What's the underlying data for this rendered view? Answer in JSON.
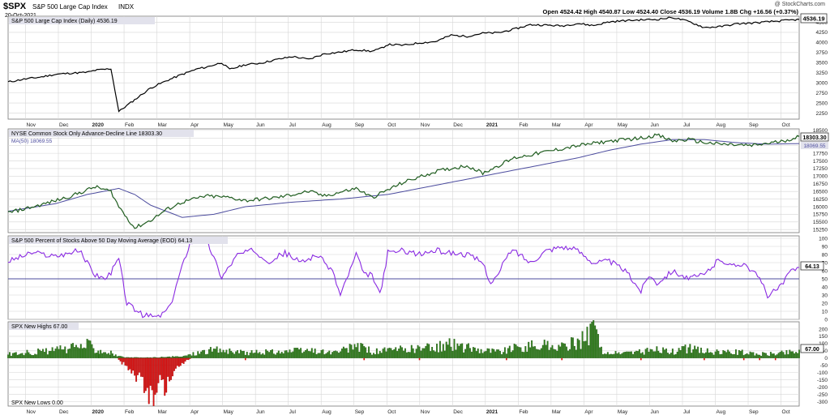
{
  "header": {
    "symbol": "$SPX",
    "name": "S&P 500 Large Cap Index",
    "exchange": "INDX",
    "date": "20-Oct-2021",
    "ohlc": "Open 4524.42  High 4540.87  Low 4524.40  Close 4536.19  Volume 1.8B  Chg +16.56 (+0.37%)",
    "watermark": "@ StockCharts.com"
  },
  "colors": {
    "price": "#000000",
    "ad_line": "#1e5c1e",
    "ma": "#4c4c9e",
    "pct": "#8a2be2",
    "highs": "#2e7d1a",
    "lows": "#dd1111",
    "grid": "#d6d6d6",
    "label_box": "#e2e2ec"
  },
  "chart_data": [
    {
      "type": "line",
      "title": "S&P 500 Large Cap Index (Daily) 4536.19",
      "last_value": "4536.19",
      "ylim": [
        2100,
        4650
      ],
      "yticks": [
        "4500",
        "4250",
        "4000",
        "3750",
        "3500",
        "3250",
        "3000",
        "2750",
        "2500",
        "2250"
      ],
      "anchors_x": [
        0,
        2,
        4,
        6,
        8,
        10,
        11,
        13,
        14,
        16,
        18,
        20,
        22,
        24,
        25,
        27,
        28,
        30,
        32,
        34,
        36,
        38,
        40,
        42,
        44,
        46,
        47,
        48,
        50,
        52,
        54,
        56,
        58,
        60,
        62,
        64,
        66,
        68,
        70,
        72,
        74,
        76,
        78,
        80,
        82,
        84,
        86,
        88,
        90,
        92,
        94,
        96,
        98,
        100
      ],
      "anchors_y": [
        3020,
        3090,
        3140,
        3210,
        3240,
        3260,
        3310,
        3350,
        2290,
        2580,
        2870,
        3050,
        3210,
        3350,
        3385,
        3500,
        3330,
        3450,
        3490,
        3580,
        3650,
        3580,
        3720,
        3760,
        3820,
        3780,
        3840,
        3950,
        3930,
        3990,
        4020,
        4180,
        4150,
        4230,
        4240,
        4330,
        4440,
        4430,
        4410,
        4470,
        4420,
        4510,
        4540,
        4560,
        4570,
        4620,
        4520,
        4370,
        4390,
        4460,
        4480,
        4510,
        4540,
        4570
      ]
    },
    {
      "type": "line",
      "title": "NYSE Common Stock Only Advance-Decline Line 18303.30",
      "ma_title": "MA(50) 18069.55",
      "last_value": "18303.30",
      "ma_last_value": "18069.55",
      "ylim": [
        15150,
        18550
      ],
      "yticks": [
        "18500",
        "18250",
        "18000",
        "17750",
        "17500",
        "17250",
        "17000",
        "16750",
        "16500",
        "16250",
        "16000",
        "15750",
        "15500",
        "15250"
      ],
      "ad_x": [
        0,
        4,
        8,
        11,
        13,
        14,
        16,
        18,
        20,
        22,
        25,
        28,
        30,
        34,
        38,
        40,
        44,
        46,
        50,
        54,
        58,
        60,
        64,
        68,
        72,
        76,
        80,
        82,
        84,
        86,
        88,
        90,
        94,
        98,
        100
      ],
      "ad_y": [
        15800,
        16050,
        16350,
        16650,
        16500,
        16000,
        15300,
        15550,
        15900,
        16150,
        16350,
        16300,
        16200,
        16300,
        16500,
        16350,
        16600,
        16300,
        16800,
        17150,
        17350,
        17100,
        17600,
        17800,
        18000,
        18150,
        18250,
        18350,
        18150,
        18200,
        18100,
        18050,
        18000,
        18150,
        18303
      ],
      "ma_x": [
        0,
        6,
        10,
        14,
        16,
        18,
        22,
        26,
        30,
        36,
        42,
        48,
        54,
        60,
        66,
        72,
        76,
        80,
        84,
        88,
        92,
        96,
        100
      ],
      "ma_y": [
        15850,
        16100,
        16400,
        16600,
        16400,
        16050,
        15650,
        15750,
        16000,
        16150,
        16250,
        16400,
        16700,
        17000,
        17300,
        17600,
        17850,
        18050,
        18200,
        18200,
        18100,
        18050,
        18069
      ]
    },
    {
      "type": "line",
      "title": "S&P 500 Percent of Stocks Above 50 Day Moving Average (EOD) 64.13",
      "last_value": "64.13",
      "reference_line": 50,
      "ylim": [
        0,
        103
      ],
      "yticks": [
        "100",
        "90",
        "80",
        "70",
        "60",
        "50",
        "40",
        "30",
        "20",
        "10",
        "0"
      ],
      "x": [
        0,
        3,
        6,
        9,
        11,
        12.5,
        14,
        15,
        17,
        19,
        20.5,
        21.5,
        23,
        25,
        27,
        29,
        31,
        33,
        35,
        37,
        39,
        41,
        42,
        44,
        45,
        46,
        47,
        48,
        50,
        52,
        54,
        56,
        58,
        60,
        61,
        62,
        63,
        64,
        66,
        68,
        70,
        72,
        74,
        76,
        78,
        80,
        81,
        82,
        84,
        86,
        88,
        90,
        91.5,
        93,
        95,
        96,
        97,
        98,
        99,
        100
      ],
      "y": [
        72,
        82,
        78,
        85,
        55,
        50,
        75,
        20,
        5,
        3,
        15,
        50,
        95,
        100,
        52,
        80,
        85,
        72,
        82,
        70,
        80,
        60,
        30,
        80,
        55,
        55,
        30,
        82,
        85,
        80,
        85,
        82,
        80,
        70,
        45,
        55,
        78,
        85,
        70,
        85,
        90,
        85,
        70,
        72,
        60,
        35,
        55,
        45,
        60,
        50,
        55,
        75,
        65,
        70,
        50,
        30,
        35,
        45,
        60,
        64
      ]
    },
    {
      "type": "bar",
      "title": "SPX New Highs 67.00",
      "lows_title": "SPX New Lows 0.00",
      "last_value": "67.00",
      "ylim": [
        -330,
        250
      ],
      "yticks": [
        "200",
        "150",
        "100",
        "50",
        "0",
        "-50",
        "-100",
        "-150",
        "-200",
        "-250",
        "-300"
      ],
      "highs_x": [
        0,
        4,
        8,
        10,
        11.5,
        13,
        14,
        15,
        18,
        22,
        25,
        27,
        28,
        30,
        34,
        38,
        41,
        43,
        44,
        46,
        50,
        52,
        54,
        56,
        58,
        60,
        62,
        64,
        66,
        68,
        70,
        72,
        73,
        74,
        75,
        76,
        78,
        80,
        82,
        84,
        86,
        88,
        90,
        92,
        94,
        96,
        98,
        100
      ],
      "highs_y": [
        40,
        60,
        90,
        130,
        80,
        50,
        15,
        5,
        5,
        15,
        70,
        80,
        60,
        50,
        60,
        70,
        50,
        80,
        130,
        60,
        80,
        90,
        100,
        130,
        100,
        80,
        60,
        90,
        110,
        120,
        100,
        150,
        200,
        260,
        80,
        40,
        50,
        60,
        80,
        60,
        90,
        70,
        50,
        60,
        40,
        40,
        50,
        67
      ],
      "lows_x": [
        14,
        15,
        16,
        17,
        18,
        19,
        20,
        21,
        23
      ],
      "lows_y": [
        -20,
        -80,
        -170,
        -230,
        -310,
        -300,
        -240,
        -90,
        -10
      ]
    }
  ],
  "x_axis": {
    "labels": [
      "Nov",
      "Dec",
      "2020",
      "Feb",
      "Mar",
      "Apr",
      "May",
      "Jun",
      "Jul",
      "Aug",
      "Sep",
      "Oct",
      "Nov",
      "Dec",
      "2021",
      "Feb",
      "Mar",
      "Apr",
      "May",
      "Jun",
      "Jul",
      "Aug",
      "Sep",
      "Oct"
    ]
  }
}
